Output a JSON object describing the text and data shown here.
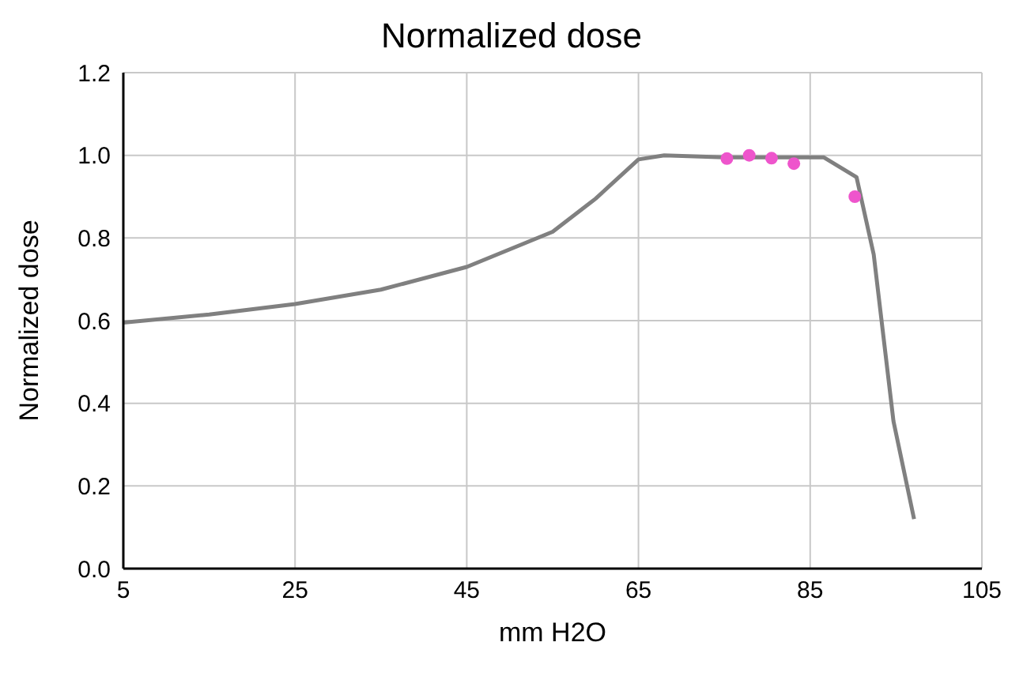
{
  "chart_data": {
    "type": "line",
    "title": "Normalized dose",
    "xlabel": "mm H2O",
    "ylabel": "Normalized dose",
    "xlim": [
      5,
      105
    ],
    "xticks": [
      5,
      25,
      45,
      65,
      85,
      105
    ],
    "ylim": [
      0,
      1.2
    ],
    "yticks": [
      {
        "value": 0,
        "label": "0.0"
      },
      0.2,
      0.4,
      0.6,
      0.8,
      {
        "value": 1,
        "label": "1.0"
      },
      1.2
    ],
    "grid": true,
    "series": [
      {
        "color": "#808080",
        "marker": "none",
        "x": [
          5,
          15,
          25,
          35,
          45,
          55,
          60,
          65,
          68,
          75,
          86.6,
          90.4,
          92.4,
          94.7,
          97.1
        ],
        "values": [
          0.595,
          0.615,
          0.64,
          0.675,
          0.73,
          0.815,
          0.895,
          0.99,
          1.0,
          0.995,
          0.995,
          0.947,
          0.76,
          0.357,
          0.12
        ]
      },
      {
        "type": "scatter",
        "color": "#ee55cc",
        "marker": "circle",
        "x": [
          75.3,
          77.9,
          80.5,
          83.1,
          90.2
        ],
        "values": [
          0.992,
          1.0,
          0.993,
          0.98,
          0.9
        ]
      }
    ]
  }
}
